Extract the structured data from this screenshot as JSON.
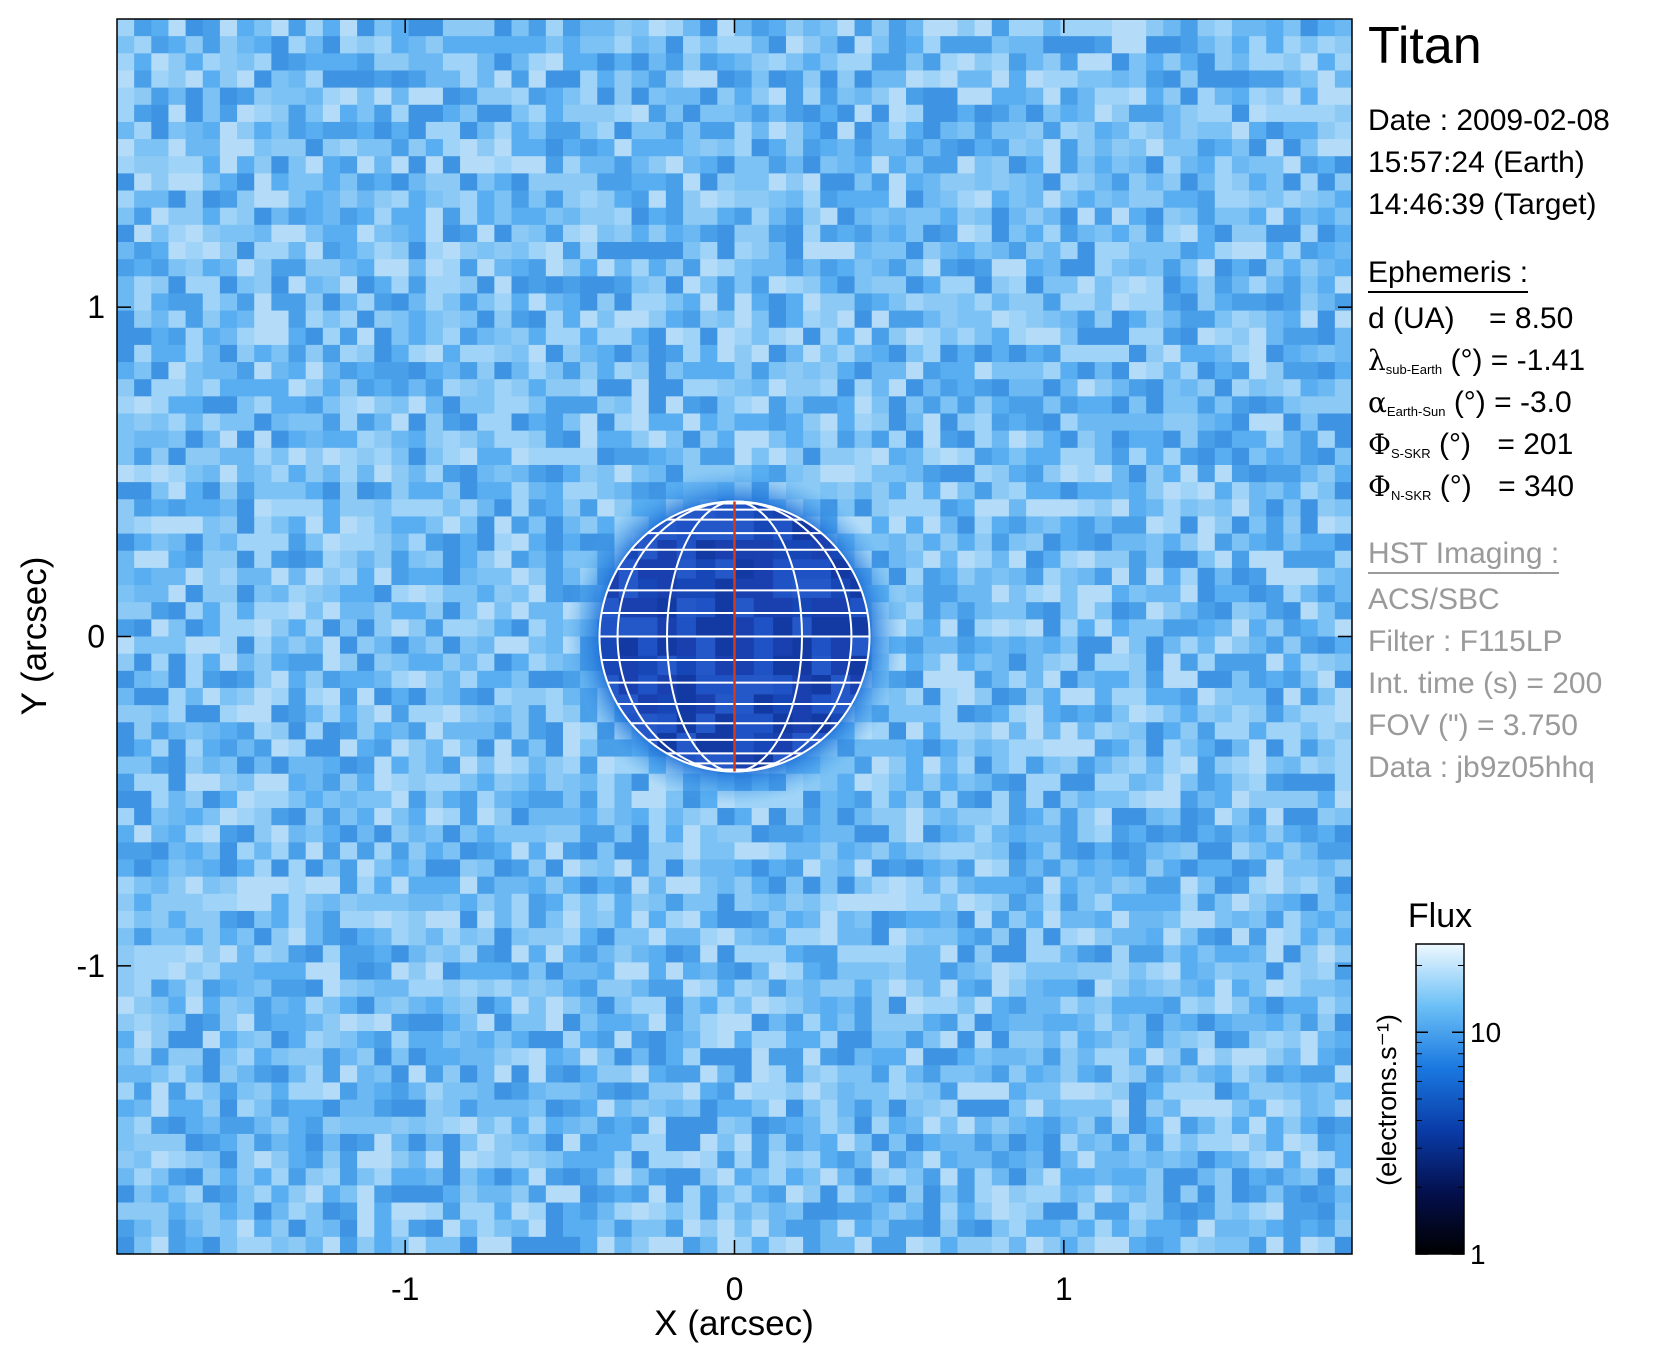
{
  "chart_data": {
    "type": "heatmap",
    "title": "Titan",
    "xlabel": "X (arcsec)",
    "ylabel": "Y (arcsec)",
    "xlim": [
      -1.875,
      1.875
    ],
    "ylim": [
      -1.875,
      1.875
    ],
    "xticks": [
      {
        "value": -1,
        "label": "-1"
      },
      {
        "value": 0,
        "label": "0"
      },
      {
        "value": 1,
        "label": "1"
      }
    ],
    "yticks": [
      {
        "value": -1,
        "label": "-1"
      },
      {
        "value": 0,
        "label": "0"
      },
      {
        "value": 1,
        "label": "1"
      }
    ],
    "planet": {
      "center": [
        0,
        0
      ],
      "radius_arcsec": 0.41,
      "central_meridian_color": "#d23a1a",
      "grid_color": "#ffffff"
    },
    "colorbar": {
      "title": "Flux",
      "label": "(electrons.s⁻¹)",
      "scale": "log",
      "range": [
        1,
        25
      ],
      "ticks": [
        {
          "value": 1,
          "label": "1"
        },
        {
          "value": 10,
          "label": "10"
        }
      ],
      "colors": [
        "#000000",
        "#04104e",
        "#0a3ca8",
        "#1a78e0",
        "#6cc0f6",
        "#eef8ff"
      ]
    }
  },
  "info": {
    "title": "Titan",
    "date_line": "Date : 2009-02-08",
    "earth_time": "15:57:24 (Earth)",
    "target_time": "14:46:39 (Target)",
    "ephemeris_header": "Ephemeris :",
    "eph": [
      {
        "sym": "",
        "sub": "",
        "name": "d (UA)",
        "value": "= 8.50"
      },
      {
        "sym": "λ",
        "sub": "sub-Earth",
        "name": "(°)",
        "value": "= -1.41"
      },
      {
        "sym": "α",
        "sub": "Earth-Sun",
        "name": "(°)",
        "value": "= -3.0"
      },
      {
        "sym": "Φ",
        "sub": "S-SKR",
        "name": "(°)",
        "value": "= 201"
      },
      {
        "sym": "Φ",
        "sub": "N-SKR",
        "name": "(°)",
        "value": "= 340"
      }
    ],
    "imaging_header": "HST Imaging :",
    "instrument": "ACS/SBC",
    "filter": "Filter : F115LP",
    "int_time": "Int. time (s) = 200",
    "fov": "FOV (\") = 3.750",
    "data_id": "Data : jb9z05hhq"
  }
}
